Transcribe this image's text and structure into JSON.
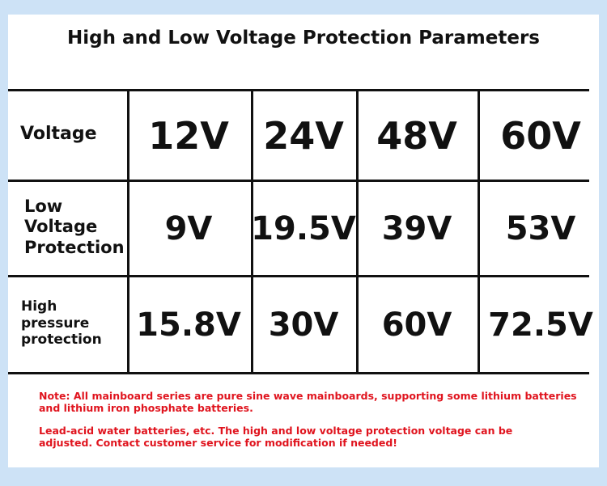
{
  "title": "High and Low Voltage Protection Parameters",
  "table": {
    "rows": [
      {
        "header": [
          "Voltage"
        ],
        "cells": [
          "12V",
          "24V",
          "48V",
          "60V"
        ]
      },
      {
        "header": [
          "Low",
          "Voltage",
          "Protection"
        ],
        "cells": [
          "9V",
          "19.5V",
          "39V",
          "53V"
        ]
      },
      {
        "header": [
          "High",
          "pressure",
          "protection"
        ],
        "cells": [
          "15.8V",
          "30V",
          "60V",
          "72.5V"
        ]
      }
    ]
  },
  "notes": [
    [
      "Note: All mainboard series are pure sine wave mainboards, supporting some lithium batteries",
      "and lithium iron phosphate batteries."
    ],
    [
      "Lead-acid water batteries, etc. The high and low voltage protection voltage can be",
      "adjusted. Contact customer service for modification if needed!"
    ]
  ]
}
